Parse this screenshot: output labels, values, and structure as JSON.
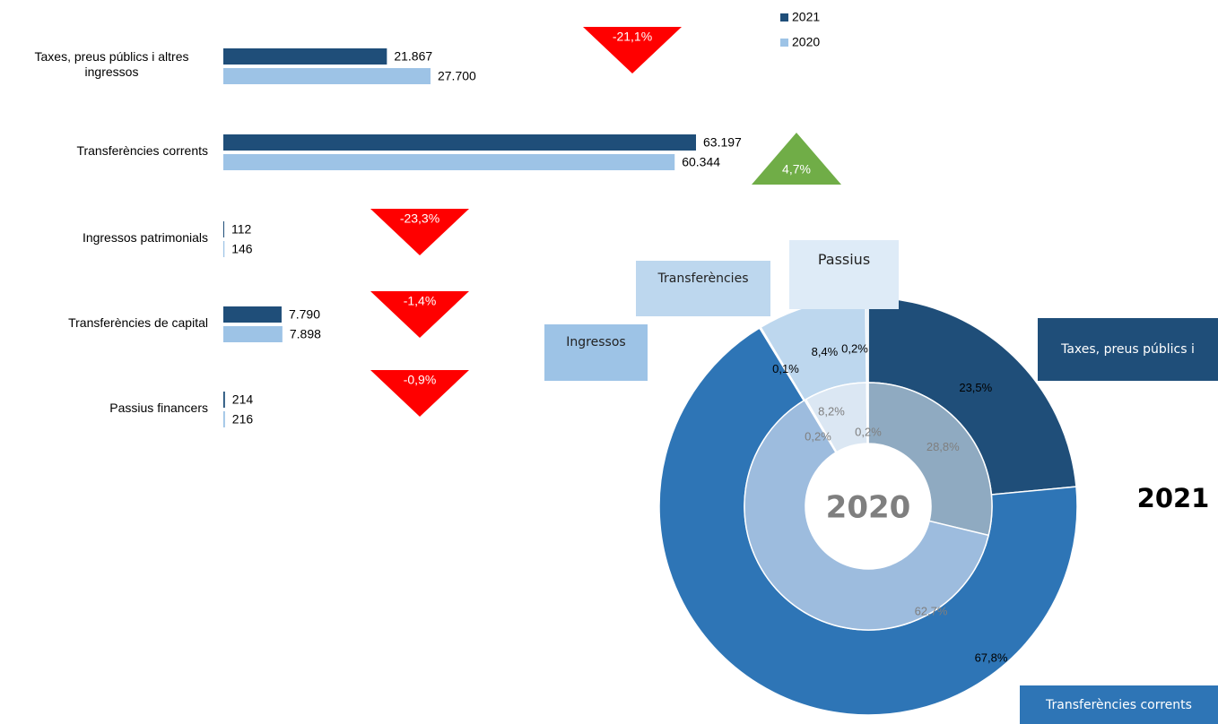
{
  "chart_data": [
    {
      "type": "bar",
      "orientation": "horizontal",
      "categories": [
        "Taxes, preus públics i altres ingressos",
        "Transferències corrents",
        "Ingressos patrimonials",
        "Transferències de capital",
        "Passius financers"
      ],
      "series": [
        {
          "name": "2021",
          "color": "#1f4e79",
          "values": [
            21867,
            63197,
            112,
            7790,
            214
          ],
          "value_labels": [
            "21.867",
            "63.197",
            "112",
            "7.790",
            "214"
          ]
        },
        {
          "name": "2020",
          "color": "#9dc3e6",
          "values": [
            27700,
            60344,
            146,
            7898,
            216
          ],
          "value_labels": [
            "27.700",
            "60.344",
            "146",
            "7.898",
            "216"
          ]
        }
      ],
      "changes": {
        "values": [
          -21.1,
          4.7,
          -23.3,
          -1.4,
          -0.9
        ],
        "value_labels": [
          "-21,1%",
          "4,7%",
          "-23,3%",
          "-1,4%",
          "-0,9%"
        ],
        "up_color": "#70ad47",
        "down_color": "#ff0000"
      },
      "legend": "top-right"
    },
    {
      "type": "donut",
      "categories": [
        "Taxes, preus públics i",
        "Transferències corrents",
        "Ingressos",
        "Transferències",
        "Passius"
      ],
      "colors": [
        "#1f4e79",
        "#2e75b6",
        "#9dc3e6",
        "#bdd7ee",
        "#deebf7"
      ],
      "series": [
        {
          "name": "2021",
          "ring": "outer",
          "colors": [
            "#1f4e79",
            "#2e75b6",
            "#9dc3e6",
            "#bdd7ee",
            "#deebf7"
          ],
          "values": [
            23.5,
            67.8,
            0.1,
            8.4,
            0.2
          ],
          "value_labels": [
            "23,5%",
            "67,8%",
            "0,1%",
            "8,4%",
            "0,2%"
          ]
        },
        {
          "name": "2020",
          "ring": "inner",
          "colors": [
            "#8faac1",
            "#9dbcde",
            "#bcd3ea",
            "#dbe7f3",
            "#e8f0f8"
          ],
          "values": [
            28.8,
            62.7,
            0.2,
            8.2,
            0.2
          ],
          "value_labels": [
            "28,8%",
            "62,7%",
            "0,2%",
            "8,2%",
            "0,2%"
          ]
        }
      ]
    }
  ]
}
